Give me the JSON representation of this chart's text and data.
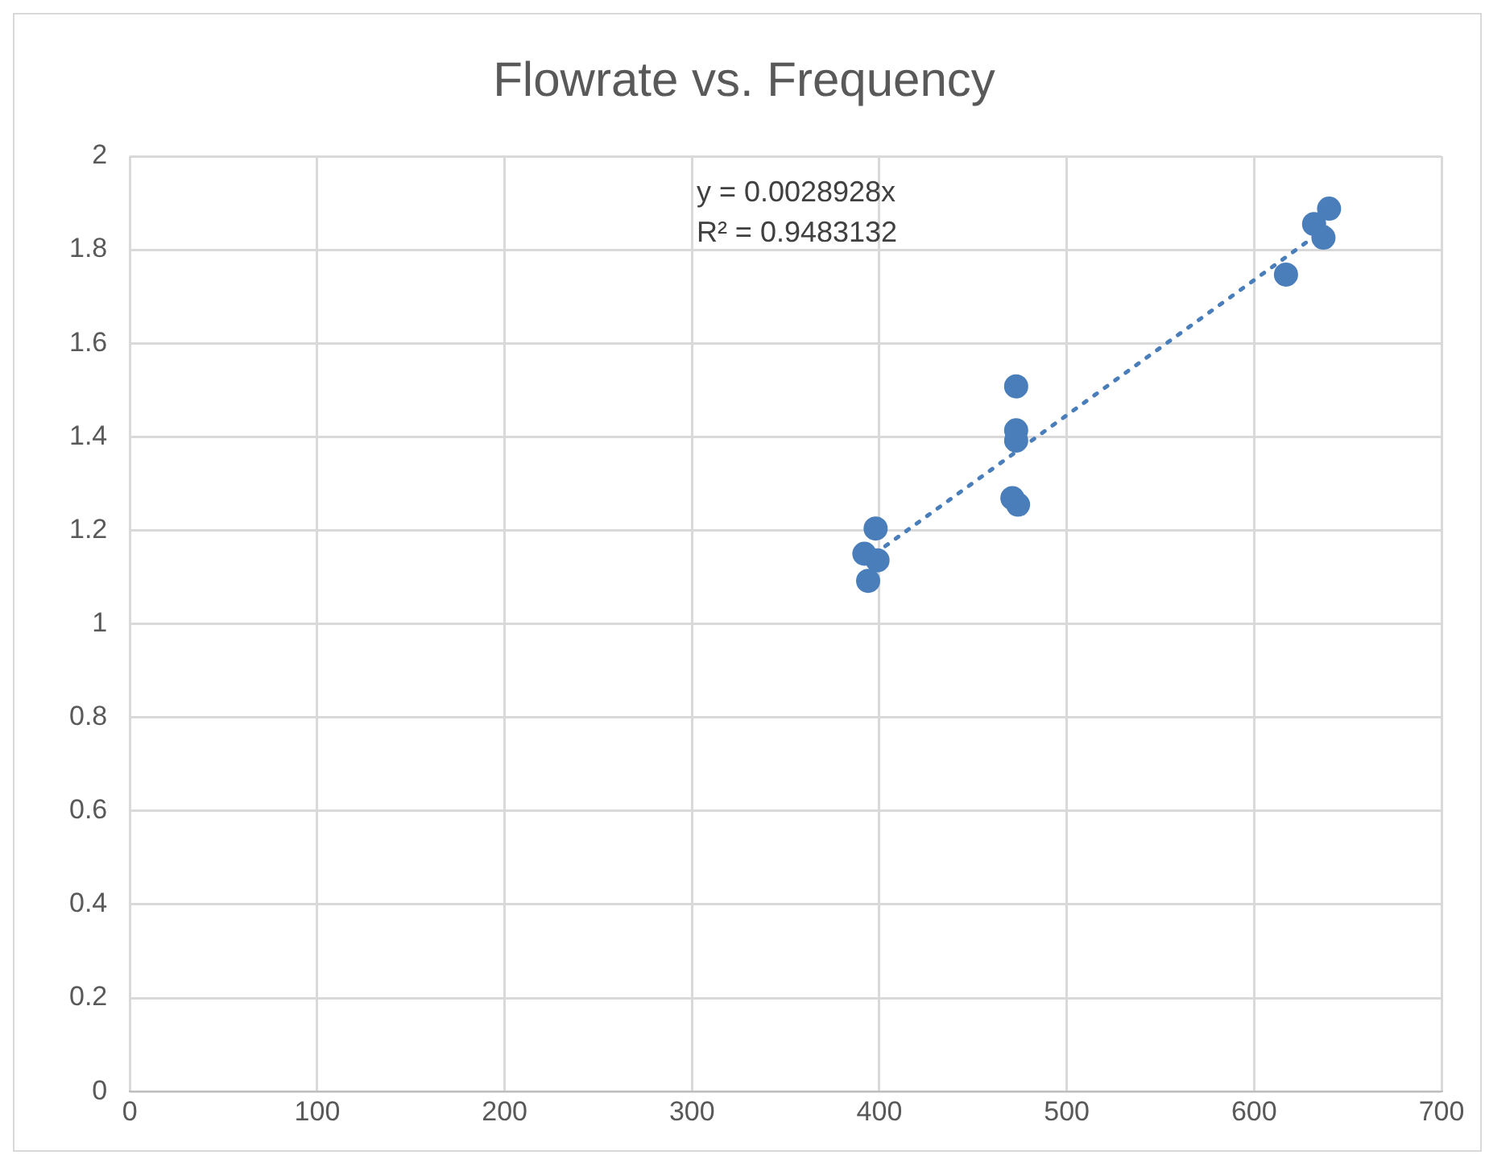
{
  "chart_data": {
    "type": "scatter",
    "title": "Flowrate vs. Frequency",
    "series": [
      {
        "type": "scatter",
        "color": "#4a7ebb",
        "x": [
          398,
          392,
          399,
          394,
          473,
          473,
          473,
          471,
          474,
          640,
          632,
          637,
          617
        ],
        "values": [
          1.204,
          1.15,
          1.136,
          1.092,
          1.508,
          1.414,
          1.392,
          1.269,
          1.255,
          1.888,
          1.855,
          1.826,
          1.747
        ]
      },
      {
        "type": "line",
        "color": "#4a7ebb",
        "line_style": "dotted",
        "marker": "none",
        "x": [
          392,
          640
        ],
        "values": [
          1.134,
          1.851
        ]
      }
    ],
    "annotations": [
      "y = 0.0028928x",
      "R² = 0.9483132"
    ],
    "xlim": [
      0,
      700
    ],
    "xticks": [
      0,
      100,
      200,
      300,
      400,
      500,
      600,
      700
    ],
    "ylim": [
      0,
      2
    ],
    "yticks": [
      0,
      0.2,
      0.4,
      0.6,
      0.8,
      1,
      1.2,
      1.4,
      1.6,
      1.8,
      2
    ],
    "grid": true,
    "legend": false,
    "marker": "circle"
  }
}
